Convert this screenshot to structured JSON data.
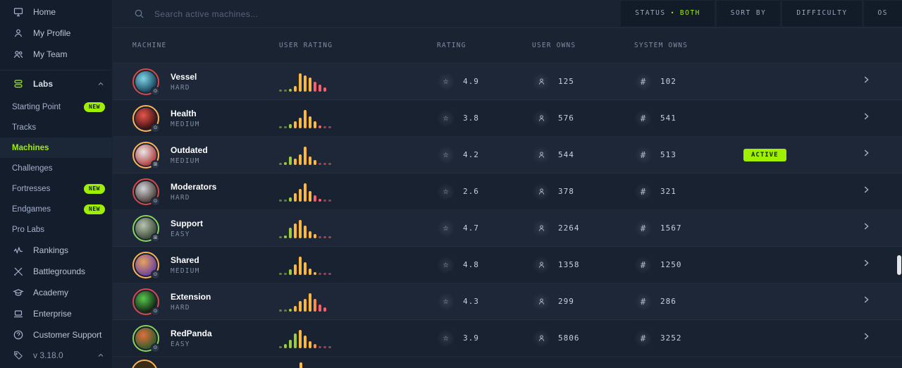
{
  "colors": {
    "accent": "#9fef00",
    "hist": {
      "g": "#9ccc3c",
      "y": "#ffb83d",
      "o": "#ff8c4a",
      "r": "#ff5d6c"
    },
    "ring": {
      "HARD": "#d6494a",
      "MEDIUM": "#ffb454",
      "EASY": "#86d35a"
    }
  },
  "sidebar": {
    "items": [
      {
        "label": "Home",
        "icon": "monitor-icon"
      },
      {
        "label": "My Profile",
        "icon": "user-icon"
      },
      {
        "label": "My Team",
        "icon": "users-icon"
      },
      {
        "label": "Labs",
        "icon": "labs-icon",
        "expanded": true,
        "section_start": true,
        "bold": true
      },
      {
        "label": "Starting Point",
        "sub": true,
        "badge": "NEW"
      },
      {
        "label": "Tracks",
        "sub": true
      },
      {
        "label": "Machines",
        "sub": true,
        "active": true
      },
      {
        "label": "Challenges",
        "sub": true
      },
      {
        "label": "Fortresses",
        "sub": true,
        "badge": "NEW"
      },
      {
        "label": "Endgames",
        "sub": true,
        "badge": "NEW"
      },
      {
        "label": "Pro Labs",
        "sub": true
      },
      {
        "label": "Rankings",
        "icon": "rankings-icon"
      },
      {
        "label": "Battlegrounds",
        "icon": "battlegrounds-icon"
      },
      {
        "label": "Academy",
        "icon": "academy-icon"
      },
      {
        "label": "Enterprise",
        "icon": "enterprise-icon"
      },
      {
        "label": "Customer Support",
        "icon": "support-icon"
      }
    ],
    "version": {
      "label": "v 3.18.0",
      "icon": "tag-icon",
      "expanded": true
    }
  },
  "topbar": {
    "search_placeholder": "Search active machines...",
    "filters": [
      {
        "label": "STATUS",
        "value": "BOTH"
      },
      {
        "label": "SORT BY"
      },
      {
        "label": "DIFFICULTY"
      },
      {
        "label": "OS"
      }
    ]
  },
  "table": {
    "columns": [
      "MACHINE",
      "USER RATING",
      "RATING",
      "USER OWNS",
      "SYSTEM OWNS"
    ],
    "rows": [
      {
        "name": "Vessel",
        "difficulty": "HARD",
        "rating": "4.9",
        "user_owns": "125",
        "system_owns": "102",
        "avatar": [
          "#7fd4e8",
          "#134056"
        ],
        "os_glyph": "⊙",
        "hist": [
          [
            3,
            "g"
          ],
          [
            3,
            "g"
          ],
          [
            4,
            "g"
          ],
          [
            8,
            "y"
          ],
          [
            26,
            "y"
          ],
          [
            23,
            "y"
          ],
          [
            20,
            "y"
          ],
          [
            14,
            "r"
          ],
          [
            10,
            "r"
          ],
          [
            6,
            "r"
          ]
        ]
      },
      {
        "name": "Health",
        "difficulty": "MEDIUM",
        "rating": "3.8",
        "user_owns": "576",
        "system_owns": "541",
        "avatar": [
          "#e8554d",
          "#3a0f0f"
        ],
        "os_glyph": "⊙",
        "hist": [
          [
            3,
            "g"
          ],
          [
            3,
            "g"
          ],
          [
            6,
            "g"
          ],
          [
            10,
            "y"
          ],
          [
            15,
            "y"
          ],
          [
            26,
            "y"
          ],
          [
            17,
            "y"
          ],
          [
            10,
            "y"
          ],
          [
            4,
            "r"
          ],
          [
            3,
            "r"
          ],
          [
            3,
            "r"
          ]
        ]
      },
      {
        "name": "Outdated",
        "difficulty": "MEDIUM",
        "rating": "4.2",
        "user_owns": "544",
        "system_owns": "513",
        "avatar": [
          "#e8e8e8",
          "#b03a3a"
        ],
        "os_glyph": "⊞",
        "badge": "ACTIVE",
        "hist": [
          [
            3,
            "g"
          ],
          [
            4,
            "g"
          ],
          [
            12,
            "g"
          ],
          [
            9,
            "y"
          ],
          [
            15,
            "y"
          ],
          [
            26,
            "y"
          ],
          [
            12,
            "y"
          ],
          [
            7,
            "y"
          ],
          [
            3,
            "r"
          ],
          [
            3,
            "r"
          ],
          [
            3,
            "r"
          ]
        ]
      },
      {
        "name": "Moderators",
        "difficulty": "HARD",
        "rating": "2.6",
        "user_owns": "378",
        "system_owns": "321",
        "avatar": [
          "#cfd4da",
          "#4a3b35"
        ],
        "os_glyph": "⊙",
        "hist": [
          [
            3,
            "g"
          ],
          [
            3,
            "g"
          ],
          [
            6,
            "g"
          ],
          [
            12,
            "y"
          ],
          [
            18,
            "y"
          ],
          [
            26,
            "y"
          ],
          [
            15,
            "y"
          ],
          [
            9,
            "r"
          ],
          [
            4,
            "r"
          ],
          [
            3,
            "r"
          ],
          [
            3,
            "r"
          ]
        ]
      },
      {
        "name": "Support",
        "difficulty": "EASY",
        "rating": "4.7",
        "user_owns": "2264",
        "system_owns": "1567",
        "avatar": [
          "#b7c4b1",
          "#3a4a36"
        ],
        "os_glyph": "⊞",
        "hist": [
          [
            3,
            "g"
          ],
          [
            4,
            "g"
          ],
          [
            15,
            "g"
          ],
          [
            21,
            "y"
          ],
          [
            26,
            "y"
          ],
          [
            18,
            "y"
          ],
          [
            10,
            "y"
          ],
          [
            6,
            "y"
          ],
          [
            3,
            "r"
          ],
          [
            3,
            "r"
          ],
          [
            3,
            "r"
          ]
        ]
      },
      {
        "name": "Shared",
        "difficulty": "MEDIUM",
        "rating": "4.8",
        "user_owns": "1358",
        "system_owns": "1250",
        "avatar": [
          "#e8a45c",
          "#6b3fa0"
        ],
        "os_glyph": "⊙",
        "hist": [
          [
            3,
            "g"
          ],
          [
            3,
            "g"
          ],
          [
            8,
            "g"
          ],
          [
            15,
            "y"
          ],
          [
            26,
            "y"
          ],
          [
            18,
            "y"
          ],
          [
            9,
            "y"
          ],
          [
            4,
            "y"
          ],
          [
            3,
            "r"
          ],
          [
            3,
            "r"
          ],
          [
            3,
            "r"
          ]
        ]
      },
      {
        "name": "Extension",
        "difficulty": "HARD",
        "rating": "4.3",
        "user_owns": "299",
        "system_owns": "286",
        "avatar": [
          "#57c84d",
          "#102010"
        ],
        "os_glyph": "⊙",
        "hist": [
          [
            3,
            "g"
          ],
          [
            3,
            "g"
          ],
          [
            4,
            "g"
          ],
          [
            8,
            "y"
          ],
          [
            15,
            "y"
          ],
          [
            18,
            "y"
          ],
          [
            26,
            "y"
          ],
          [
            18,
            "o"
          ],
          [
            10,
            "r"
          ],
          [
            6,
            "r"
          ]
        ]
      },
      {
        "name": "RedPanda",
        "difficulty": "EASY",
        "rating": "3.9",
        "user_owns": "5806",
        "system_owns": "3252",
        "avatar": [
          "#e0703c",
          "#2f5a2b"
        ],
        "os_glyph": "⊙",
        "hist": [
          [
            3,
            "g"
          ],
          [
            6,
            "g"
          ],
          [
            12,
            "g"
          ],
          [
            21,
            "g"
          ],
          [
            26,
            "y"
          ],
          [
            18,
            "y"
          ],
          [
            10,
            "y"
          ],
          [
            6,
            "o"
          ],
          [
            3,
            "r"
          ],
          [
            3,
            "r"
          ],
          [
            3,
            "r"
          ]
        ]
      }
    ]
  }
}
